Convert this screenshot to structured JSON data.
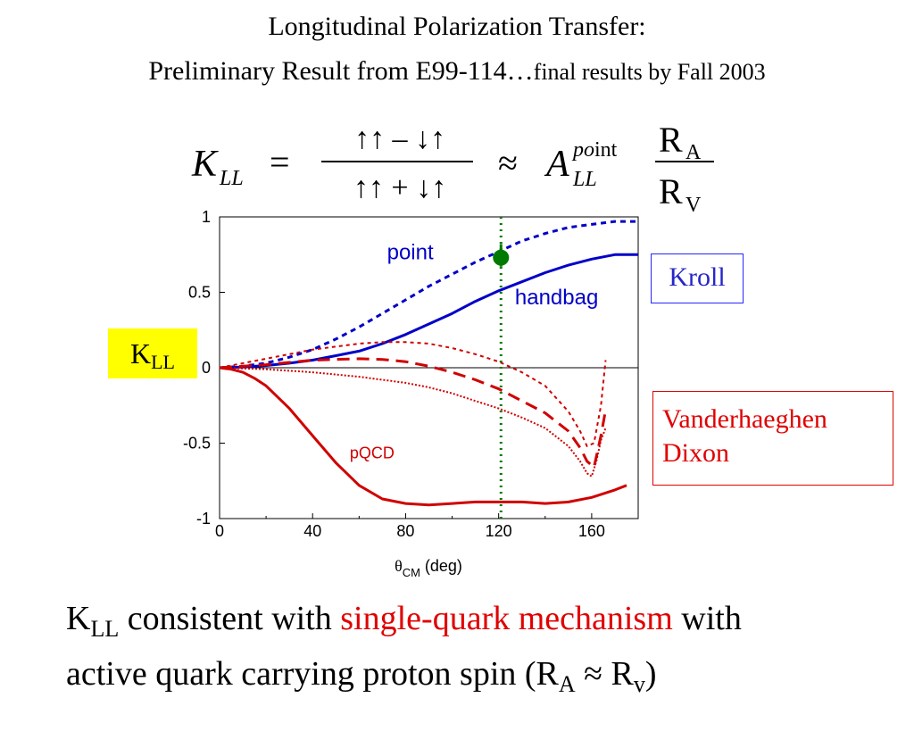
{
  "title": {
    "line1": "Longitudinal Polarization Transfer:",
    "line2_main": "Preliminary Result from E99-114…",
    "line2_small": "final results by Fall 2003"
  },
  "formula": {
    "lhs": "K",
    "lhs_sub": "LL",
    "equals": "=",
    "numerator": "↑↑ – ↓↑",
    "denominator": "↑↑ + ↓↑",
    "approx": "≈",
    "A": "A",
    "A_sub": "LL",
    "A_sup_italic": "po",
    "A_sup_roman": "int",
    "ratio_num": "R",
    "ratio_num_sub": "A",
    "ratio_den": "R",
    "ratio_den_sub": "V"
  },
  "labels": {
    "kll_main": "K",
    "kll_sub": "LL",
    "kroll": "Kroll",
    "vd_line1": "Vanderhaeghen",
    "vd_line2": "Dixon"
  },
  "bottom": {
    "k": "K",
    "k_sub": "LL",
    "text1": " consistent with ",
    "red": "single-quark mechanism",
    "text2": " with",
    "line2a": "active quark carrying proton spin (R",
    "line2_sub1": "A",
    "line2b": " ≈ R",
    "line2_sub2": "v",
    "line2c": ")"
  },
  "colors": {
    "blue": "#0000c8",
    "red": "#d00000",
    "green": "#007a00",
    "yellow": "#ffff00"
  },
  "chart_data": {
    "type": "line",
    "xlabel_symbol": "θ",
    "xlabel_sub": "CM",
    "xlabel_rest": " (deg)",
    "ylabel": "K_LL",
    "xlim": [
      0,
      180
    ],
    "ylim": [
      -1,
      1
    ],
    "xticks": [
      0,
      40,
      80,
      120,
      160
    ],
    "yticks": [
      1,
      0.5,
      0,
      -0.5,
      -1
    ],
    "ytick_labels": [
      "1",
      "0.5",
      "0",
      "-0.5",
      "-1"
    ],
    "series": [
      {
        "name": "point",
        "color": "#0000c8",
        "dash": "6,5",
        "width": 3,
        "x": [
          0,
          10,
          20,
          30,
          40,
          50,
          60,
          70,
          80,
          90,
          100,
          110,
          120,
          130,
          140,
          150,
          160,
          170,
          180
        ],
        "y": [
          0,
          0.01,
          0.03,
          0.07,
          0.12,
          0.19,
          0.27,
          0.36,
          0.45,
          0.54,
          0.62,
          0.7,
          0.77,
          0.84,
          0.89,
          0.93,
          0.95,
          0.97,
          0.97
        ]
      },
      {
        "name": "handbag",
        "color": "#0000c8",
        "dash": "",
        "width": 3,
        "x": [
          0,
          10,
          20,
          30,
          40,
          50,
          60,
          70,
          80,
          90,
          100,
          110,
          120,
          130,
          140,
          150,
          160,
          170,
          180
        ],
        "y": [
          0,
          0.005,
          0.015,
          0.03,
          0.05,
          0.08,
          0.11,
          0.16,
          0.22,
          0.29,
          0.36,
          0.44,
          0.51,
          0.57,
          0.63,
          0.68,
          0.72,
          0.75,
          0.75
        ]
      },
      {
        "color": "#d00000",
        "dash": "4,4",
        "width": 2,
        "x": [
          0,
          20,
          40,
          60,
          70,
          80,
          90,
          100,
          110,
          120,
          130,
          140,
          150,
          155,
          158,
          161,
          164,
          166
        ],
        "y": [
          0,
          0.06,
          0.12,
          0.16,
          0.17,
          0.17,
          0.16,
          0.13,
          0.09,
          0.04,
          -0.03,
          -0.12,
          -0.29,
          -0.42,
          -0.52,
          -0.5,
          -0.25,
          0.05
        ]
      },
      {
        "color": "#d00000",
        "dash": "14,8",
        "width": 3,
        "x": [
          0,
          20,
          40,
          60,
          70,
          80,
          90,
          100,
          110,
          120,
          130,
          140,
          150,
          155,
          158,
          161,
          164,
          166
        ],
        "y": [
          0,
          0.02,
          0.05,
          0.06,
          0.055,
          0.04,
          0.01,
          -0.03,
          -0.08,
          -0.14,
          -0.22,
          -0.3,
          -0.42,
          -0.53,
          -0.62,
          -0.66,
          -0.45,
          -0.28
        ]
      },
      {
        "color": "#d00000",
        "dash": "2,2",
        "width": 2,
        "x": [
          0,
          20,
          40,
          60,
          80,
          90,
          100,
          110,
          120,
          130,
          140,
          150,
          155,
          158,
          160,
          162,
          164,
          166
        ],
        "y": [
          0,
          -0.01,
          -0.03,
          -0.06,
          -0.1,
          -0.13,
          -0.17,
          -0.22,
          -0.27,
          -0.33,
          -0.4,
          -0.52,
          -0.62,
          -0.7,
          -0.72,
          -0.62,
          -0.48,
          -0.4
        ]
      },
      {
        "name": "pQCD",
        "color": "#d00000",
        "dash": "",
        "width": 3,
        "x": [
          0,
          5,
          10,
          15,
          20,
          30,
          40,
          50,
          60,
          70,
          80,
          90,
          100,
          110,
          120,
          130,
          140,
          150,
          160,
          170,
          175
        ],
        "y": [
          0,
          -0.01,
          -0.03,
          -0.07,
          -0.12,
          -0.27,
          -0.45,
          -0.63,
          -0.78,
          -0.87,
          -0.9,
          -0.91,
          -0.9,
          -0.89,
          -0.89,
          -0.89,
          -0.9,
          -0.89,
          -0.86,
          -0.81,
          -0.78
        ]
      }
    ],
    "annotations": [
      {
        "text": "point",
        "color": "#0000c8",
        "x": 72,
        "y": 0.72
      },
      {
        "text": "handbag",
        "color": "#0000c8",
        "x": 127,
        "y": 0.42
      },
      {
        "text": "pQCD",
        "color": "#d00000",
        "x": 56,
        "y": -0.6
      }
    ],
    "vline": {
      "x": 121,
      "color": "#007a00"
    },
    "data_point": {
      "x": 121,
      "y": 0.73,
      "err_up": 0.09,
      "err_down": 0.06,
      "color": "#007a00"
    }
  }
}
